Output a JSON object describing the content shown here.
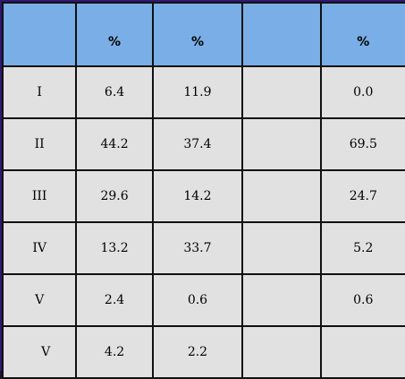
{
  "table": {
    "headers": [
      "",
      "%",
      "%",
      "",
      "%"
    ],
    "rows": [
      [
        "I",
        "6.4",
        "11.9",
        "",
        "0.0"
      ],
      [
        "II",
        "44.2",
        "37.4",
        "",
        "69.5"
      ],
      [
        "III",
        "29.6",
        "14.2",
        "",
        "24.7"
      ],
      [
        "IV",
        "13.2",
        "33.7",
        "",
        "5.2"
      ],
      [
        "V",
        "2.4",
        "0.6",
        "",
        "0.6"
      ],
      [
        "V",
        "4.2",
        "2.2",
        "",
        ""
      ]
    ]
  },
  "colors": {
    "header_bg": "#7aaee6",
    "cell_bg": "#e1e1e1",
    "frame": "#2e1a6e"
  }
}
